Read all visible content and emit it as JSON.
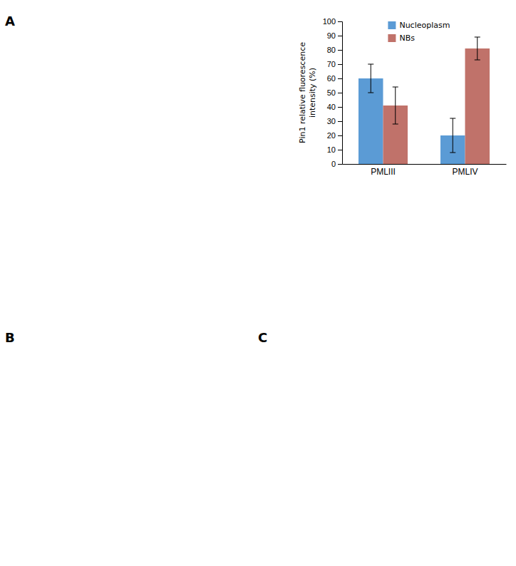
{
  "chart_data": {
    "type": "bar",
    "categories": [
      "PMLIII",
      "PMLIV"
    ],
    "series": [
      {
        "name": "Nucleoplasm",
        "color": "#5B9BD5",
        "values": [
          60,
          20
        ],
        "errors": [
          10,
          12
        ]
      },
      {
        "name": "NBs",
        "color": "#C0726A",
        "values": [
          41,
          81
        ],
        "errors": [
          13,
          8
        ]
      }
    ],
    "ylabel": "Pin1 relative fluorescence\nintensity (%)",
    "ylim": [
      0,
      100
    ],
    "yticks": [
      0,
      10,
      20,
      30,
      40,
      50,
      60,
      70,
      80,
      90,
      100
    ],
    "grid": false,
    "legend": "upper-left",
    "annotations": [
      "A",
      "B",
      "C"
    ]
  }
}
